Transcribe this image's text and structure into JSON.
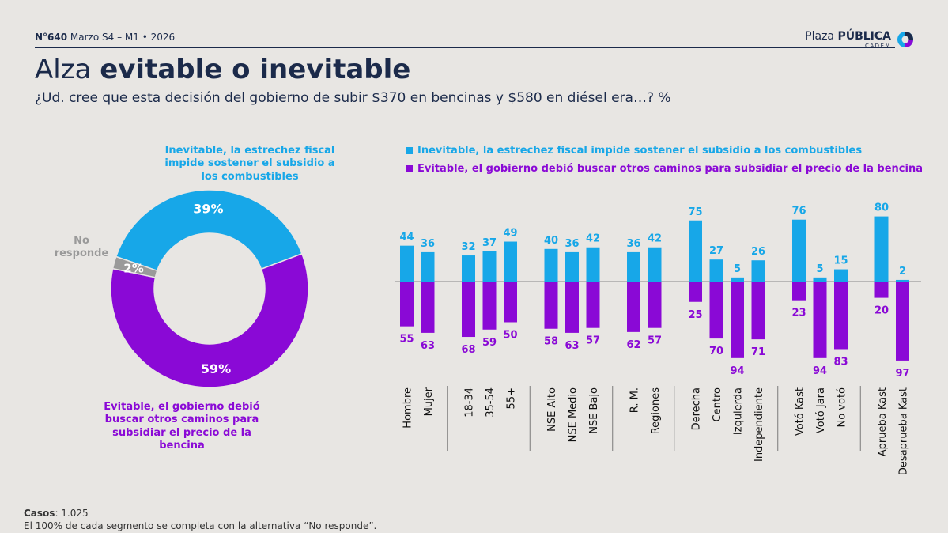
{
  "header": {
    "number": "N°640",
    "period": "Marzo S4 – M1 • 2026",
    "logo_main_light": "Plaza ",
    "logo_main_bold": "PÚBLICA",
    "logo_sub": "CADEM"
  },
  "title": {
    "light": "Alza ",
    "bold": "evitable o inevitable"
  },
  "subtitle": "¿Ud. cree que esta decisión del gobierno de subir $370 en bencinas y $580 en diésel era…? %",
  "donut_labels": {
    "inevitable": "Inevitable, la estrechez fiscal impide sostener el subsidio a los combustibles",
    "evitable": "Evitable, el gobierno debió buscar otros caminos para subsidiar el precio de la bencina",
    "no_responde": "No responde"
  },
  "legend": {
    "inevitable": "Inevitable, la estrechez fiscal impide sostener el subsidio a los combustibles",
    "evitable": "Evitable, el gobierno debió buscar otros caminos para subsidiar el precio de la bencina"
  },
  "footer": {
    "casos_label": "Casos",
    "casos_value": ": 1.025",
    "note": "El 100% de cada segmento se completa con la alternativa “No responde”."
  },
  "colors": {
    "inevitable": "#17a7e8",
    "evitable": "#8a09d6",
    "no_responde": "#9a9a9a"
  },
  "chart_data": [
    {
      "type": "pie",
      "variant": "donut",
      "categories": [
        "Inevitable",
        "Evitable",
        "No responde"
      ],
      "values": [
        39,
        59,
        2
      ],
      "value_labels": [
        "39%",
        "59%",
        "2%"
      ]
    },
    {
      "type": "bar",
      "variant": "diverging",
      "groups": [
        [
          "Hombre",
          "Mujer"
        ],
        [
          "18-34",
          "35-54",
          "55+"
        ],
        [
          "NSE Alto",
          "NSE Medio",
          "NSE Bajo"
        ],
        [
          "R. M.",
          "Regiones"
        ],
        [
          "Derecha",
          "Centro",
          "Izquierda",
          "Independiente"
        ],
        [
          "Votó Kast",
          "Votó Jara",
          "No votó"
        ],
        [
          "Aprueba Kast",
          "Desaprueba Kast"
        ]
      ],
      "categories": [
        "Hombre",
        "Mujer",
        "18-34",
        "35-54",
        "55+",
        "NSE Alto",
        "NSE Medio",
        "NSE Bajo",
        "R. M.",
        "Regiones",
        "Derecha",
        "Centro",
        "Izquierda",
        "Independiente",
        "Votó Kast",
        "Votó Jara",
        "No votó",
        "Aprueba Kast",
        "Desaprueba Kast"
      ],
      "series": [
        {
          "name": "Inevitable, la estrechez fiscal impide sostener el subsidio a los combustibles",
          "direction": "up",
          "values": [
            44,
            36,
            32,
            37,
            49,
            40,
            36,
            42,
            36,
            42,
            75,
            27,
            5,
            26,
            76,
            5,
            15,
            80,
            2
          ]
        },
        {
          "name": "Evitable, el gobierno debió buscar otros caminos para subsidiar el precio de la bencina",
          "direction": "down",
          "values": [
            55,
            63,
            68,
            59,
            50,
            58,
            63,
            57,
            62,
            57,
            25,
            70,
            94,
            71,
            23,
            94,
            83,
            20,
            97
          ]
        }
      ],
      "legend": "top"
    }
  ]
}
